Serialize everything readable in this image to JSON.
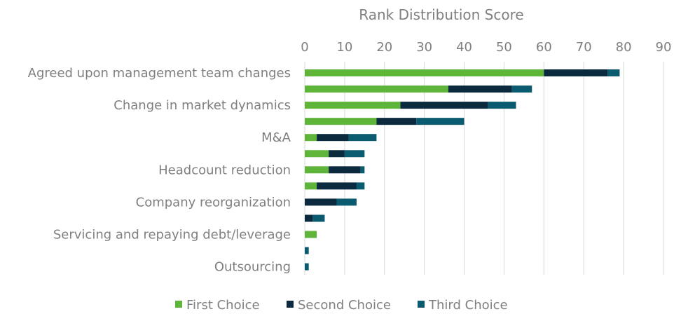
{
  "chart_data": {
    "type": "bar",
    "orientation": "horizontal",
    "stacked": true,
    "title": "",
    "xlabel": "Rank Distribution Score",
    "ylabel": "",
    "xlim": [
      0,
      90
    ],
    "x_ticks": [
      0,
      10,
      20,
      30,
      40,
      50,
      60,
      70,
      80,
      90
    ],
    "x_axis_position": "top",
    "grid": true,
    "legend_position": "bottom",
    "categories": [
      "Agreed upon management team changes",
      "",
      "Change in market dynamics",
      "",
      "M&A",
      "",
      "Headcount reduction",
      "",
      "Company reorganization",
      "",
      "Servicing and repaying debt/leverage",
      "",
      "Outsourcing"
    ],
    "series": [
      {
        "name": "First Choice",
        "color": "#5fb53a",
        "values": [
          60,
          36,
          24,
          18,
          3,
          6,
          6,
          3,
          0,
          0,
          3,
          0,
          0
        ]
      },
      {
        "name": "Second Choice",
        "color": "#0b2a3d",
        "values": [
          16,
          16,
          22,
          10,
          8,
          4,
          8,
          10,
          8,
          2,
          0,
          0,
          0
        ]
      },
      {
        "name": "Third Choice",
        "color": "#0b5b70",
        "values": [
          3,
          5,
          7,
          12,
          7,
          5,
          1,
          2,
          5,
          3,
          0,
          1,
          1
        ]
      }
    ]
  }
}
